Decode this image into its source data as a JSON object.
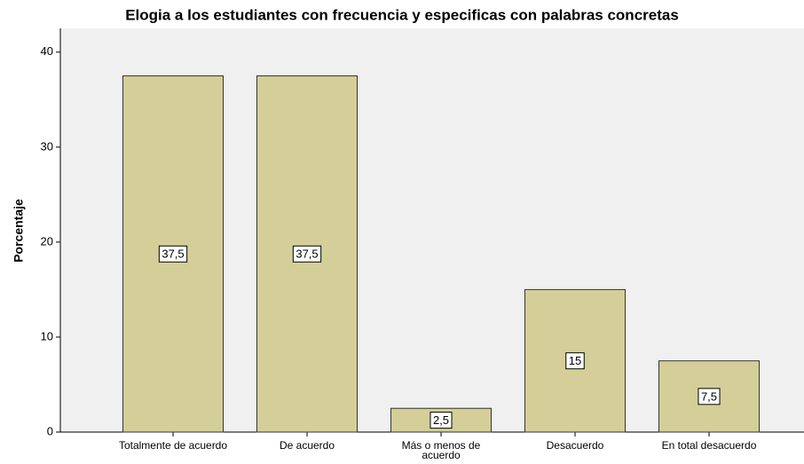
{
  "chart_data": {
    "type": "bar",
    "title": "Elogia a los estudiantes con frecuencia y especificas con palabras concretas",
    "y_label": "Porcentaje",
    "categories": [
      "Totalmente de acuerdo",
      "De acuerdo",
      "Más o menos de acuerdo",
      "Desacuerdo",
      "En total desacuerdo"
    ],
    "values": [
      37.5,
      37.5,
      2.5,
      15,
      7.5
    ],
    "value_labels": [
      "37,5",
      "37,5",
      "2,5",
      "15",
      "7,5"
    ],
    "color": "#d4cf98",
    "ylim": [
      0,
      42.5
    ],
    "yticks": [
      0,
      10,
      20,
      30,
      40
    ]
  }
}
